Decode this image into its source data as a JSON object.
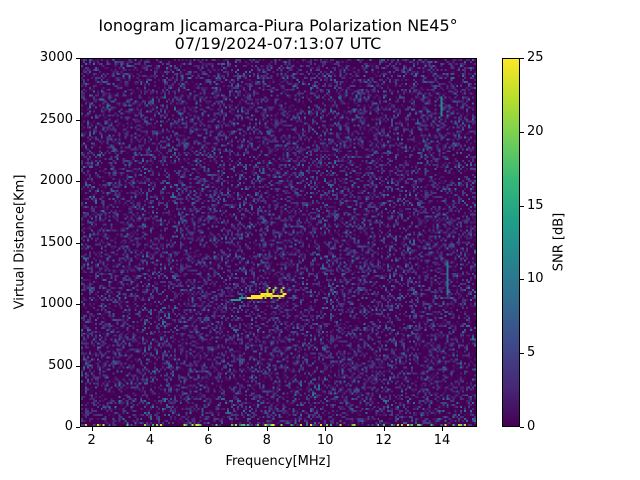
{
  "chart_data": {
    "type": "heatmap",
    "title": "Ionogram Jicamarca-Piura Polarization NE45°",
    "subtitle": "07/19/2024-07:13:07 UTC",
    "xlabel": "Frequency[MHz]",
    "ylabel": "Virtual Distance[Km]",
    "xlim": [
      1.6,
      15.2
    ],
    "ylim": [
      0,
      3000
    ],
    "xticks": [
      2,
      4,
      6,
      8,
      10,
      12,
      14
    ],
    "yticks": [
      0,
      500,
      1000,
      1500,
      2000,
      2500,
      3000
    ],
    "colorbar": {
      "label": "SNR [dB]",
      "colormap": "viridis",
      "range": [
        0,
        25
      ],
      "ticks": [
        0,
        5,
        10,
        15,
        20,
        25
      ]
    },
    "grid": false,
    "features": [
      {
        "name": "ionospheric echo trace",
        "freq_range_mhz": [
          6.8,
          8.6
        ],
        "distance_km": [
          1040,
          1150
        ],
        "snr_db": 25
      },
      {
        "name": "vertical interference line",
        "freq_mhz": 14.0,
        "distance_km": [
          2550,
          2700
        ],
        "snr_db": 12
      },
      {
        "name": "vertical interference line",
        "freq_mhz": 14.2,
        "distance_km": [
          1080,
          1350
        ],
        "snr_db": 10
      },
      {
        "name": "background noise",
        "snr_db_typical": [
          0,
          8
        ]
      }
    ]
  },
  "labels": {
    "title": "Ionogram Jicamarca-Piura Polarization NE45°",
    "subtitle": "07/19/2024-07:13:07 UTC",
    "xlabel": "Frequency[MHz]",
    "ylabel": "Virtual Distance[Km]",
    "cbar_label": "SNR [dB]",
    "xticks": [
      "2",
      "4",
      "6",
      "8",
      "10",
      "12",
      "14"
    ],
    "yticks": [
      "0",
      "500",
      "1000",
      "1500",
      "2000",
      "2500",
      "3000"
    ],
    "cticks": [
      "0",
      "5",
      "10",
      "15",
      "20",
      "25"
    ]
  }
}
